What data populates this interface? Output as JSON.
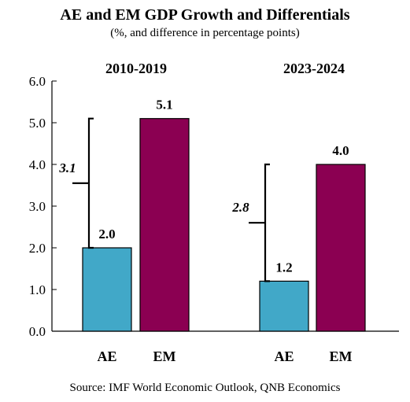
{
  "title": "AE and EM GDP Growth and Differentials",
  "subtitle": "(%, and difference in percentage points)",
  "source": "Source: IMF World Economic Outlook, QNB Economics",
  "colors": {
    "AE": "#41A8C8",
    "EM": "#8B0052"
  },
  "chart_data": {
    "type": "bar",
    "title": "AE and EM GDP Growth and Differentials",
    "subtitle": "(%, and difference in percentage points)",
    "ylim": [
      0,
      6
    ],
    "yticks": [
      "0.0",
      "1.0",
      "2.0",
      "3.0",
      "4.0",
      "5.0",
      "6.0"
    ],
    "grid": false,
    "groups": [
      {
        "label": "2010-2019",
        "categories": [
          "AE",
          "EM"
        ],
        "values": [
          2.0,
          5.1
        ],
        "value_labels": [
          "2.0",
          "5.1"
        ],
        "differential": "3.1"
      },
      {
        "label": "2023-2024",
        "categories": [
          "AE",
          "EM"
        ],
        "values": [
          1.2,
          4.0
        ],
        "value_labels": [
          "1.2",
          "4.0"
        ],
        "differential": "2.8"
      }
    ]
  }
}
